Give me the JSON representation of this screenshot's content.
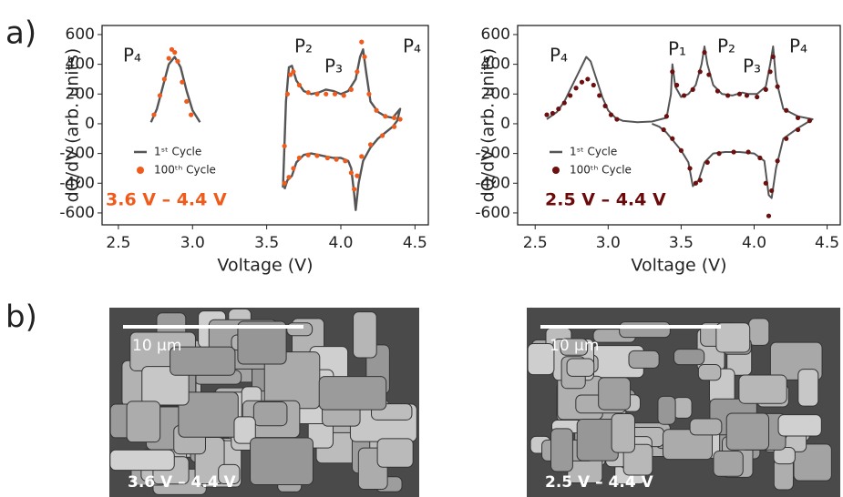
{
  "panel_labels": [
    "a)",
    "b)"
  ],
  "chart_data": [
    {
      "type": "line",
      "xlabel": "Voltage (V)",
      "ylabel": "dQ/dV (arb. units)",
      "xlim": [
        2.39,
        4.59
      ],
      "ylim": [
        -680,
        661
      ],
      "xticks": [
        2.5,
        {
          "value": 3,
          "label": "3.0"
        },
        3.5,
        {
          "value": 4,
          "label": "4.0"
        },
        4.5
      ],
      "yticks": [
        -600,
        -400,
        -200,
        0,
        200,
        400,
        600
      ],
      "annotations": [
        "P₄",
        "P₂",
        "P₃",
        "P₄"
      ],
      "range_label": "3.6 V – 4.4 V",
      "range_color": "#f05a1a",
      "series": [
        {
          "name": "1ˢᵗ Cycle",
          "color": "#555555",
          "style": "line",
          "x": [
            2.72,
            2.76,
            2.8,
            2.84,
            2.88,
            2.92,
            2.96,
            3.0,
            3.05,
            null,
            3.61,
            3.63,
            3.65,
            3.67,
            3.7,
            3.75,
            3.8,
            3.85,
            3.9,
            3.95,
            4.0,
            4.05,
            4.1,
            4.13,
            4.15,
            4.17,
            4.2,
            4.25,
            4.3,
            4.35,
            4.4,
            4.38,
            4.35,
            4.3,
            4.25,
            4.2,
            4.15,
            4.12,
            4.1,
            4.09,
            4.07,
            4.05,
            4.0,
            3.95,
            3.9,
            3.85,
            3.8,
            3.75,
            3.7,
            3.67,
            3.64,
            3.62
          ],
          "values": [
            10,
            100,
            250,
            400,
            450,
            380,
            220,
            90,
            10,
            null,
            -430,
            150,
            380,
            390,
            290,
            220,
            200,
            210,
            230,
            220,
            200,
            220,
            300,
            450,
            500,
            350,
            150,
            80,
            50,
            40,
            100,
            20,
            -20,
            -60,
            -100,
            -160,
            -250,
            -400,
            -580,
            -470,
            -300,
            -250,
            -230,
            -230,
            -220,
            -210,
            -200,
            -210,
            -260,
            -350,
            -380,
            -440
          ]
        },
        {
          "name": "100ᵗʰ Cycle",
          "color": "#f05a1a",
          "style": "scatter",
          "x": [
            2.74,
            2.78,
            2.81,
            2.84,
            2.86,
            2.88,
            2.9,
            2.93,
            2.96,
            2.99,
            3.62,
            3.64,
            3.66,
            3.68,
            3.72,
            3.78,
            3.84,
            3.9,
            3.96,
            4.02,
            4.07,
            4.11,
            4.14,
            4.16,
            4.19,
            4.24,
            4.3,
            4.36,
            4.4,
            4.36,
            4.28,
            4.2,
            4.14,
            4.11,
            4.09,
            4.07,
            4.03,
            3.97,
            3.91,
            3.84,
            3.78,
            3.72,
            3.68,
            3.65,
            3.62
          ],
          "values": [
            60,
            190,
            300,
            440,
            500,
            480,
            420,
            280,
            150,
            60,
            -150,
            200,
            330,
            350,
            260,
            210,
            200,
            200,
            200,
            190,
            230,
            350,
            550,
            450,
            200,
            90,
            50,
            40,
            30,
            -20,
            -80,
            -140,
            -220,
            -350,
            -440,
            -330,
            -250,
            -240,
            -230,
            -215,
            -210,
            -230,
            -300,
            -360,
            -400
          ]
        }
      ]
    },
    {
      "type": "line",
      "xlabel": "Voltage (V)",
      "ylabel": "dQ/dV (arb. units)",
      "xlim": [
        2.38,
        4.59
      ],
      "ylim": [
        -680,
        661
      ],
      "xticks": [
        2.5,
        {
          "value": 3,
          "label": "3.0"
        },
        3.5,
        {
          "value": 4,
          "label": "4.0"
        },
        4.5
      ],
      "yticks": [
        -600,
        -400,
        -200,
        0,
        200,
        400,
        600
      ],
      "annotations": [
        "P₄",
        "P₁",
        "P₂",
        "P₃",
        "P₄"
      ],
      "range_label": "2.5 V – 4.4 V",
      "range_color": "#6b0a0a",
      "series": [
        {
          "name": "1ˢᵗ Cycle",
          "color": "#555555",
          "style": "line",
          "x": [
            2.58,
            2.65,
            2.7,
            2.75,
            2.8,
            2.85,
            2.88,
            2.92,
            2.96,
            3.0,
            3.05,
            3.1,
            3.2,
            3.3,
            3.4,
            3.43,
            3.44,
            3.46,
            3.5,
            3.55,
            3.6,
            3.64,
            3.66,
            3.68,
            3.72,
            3.78,
            3.85,
            3.92,
            3.96,
            4.02,
            4.08,
            4.11,
            4.13,
            4.15,
            4.2,
            4.3,
            4.4,
            4.35,
            4.3,
            4.2,
            4.15,
            4.12,
            4.1,
            4.07,
            4.0,
            3.9,
            3.8,
            3.72,
            3.66,
            3.62,
            3.58,
            3.55,
            3.5,
            3.45,
            3.4,
            3.35,
            3.3
          ],
          "values": [
            30,
            80,
            150,
            250,
            350,
            450,
            420,
            300,
            180,
            90,
            40,
            20,
            10,
            15,
            40,
            200,
            400,
            250,
            180,
            200,
            260,
            400,
            520,
            400,
            260,
            200,
            190,
            210,
            200,
            200,
            250,
            400,
            520,
            300,
            100,
            50,
            30,
            0,
            -30,
            -100,
            -300,
            -500,
            -480,
            -250,
            -200,
            -190,
            -190,
            -200,
            -260,
            -380,
            -420,
            -260,
            -180,
            -120,
            -60,
            -20,
            0
          ]
        },
        {
          "name": "100ᵗʰ Cycle",
          "color": "#6b0f0f",
          "style": "scatter",
          "x": [
            2.58,
            2.62,
            2.66,
            2.7,
            2.74,
            2.78,
            2.82,
            2.86,
            2.9,
            2.94,
            2.98,
            3.02,
            3.06,
            3.4,
            3.44,
            3.47,
            3.52,
            3.58,
            3.63,
            3.66,
            3.69,
            3.75,
            3.82,
            3.9,
            3.95,
            4.02,
            4.08,
            4.11,
            4.13,
            4.16,
            4.22,
            4.3,
            4.38,
            4.3,
            4.22,
            4.16,
            4.12,
            4.1,
            4.08,
            4.04,
            3.96,
            3.86,
            3.76,
            3.68,
            3.63,
            3.6,
            3.56,
            3.5,
            3.44,
            3.38
          ],
          "values": [
            60,
            70,
            100,
            140,
            190,
            240,
            280,
            300,
            260,
            190,
            120,
            60,
            30,
            50,
            350,
            260,
            190,
            230,
            350,
            480,
            330,
            220,
            190,
            200,
            190,
            180,
            230,
            350,
            450,
            250,
            90,
            40,
            20,
            -40,
            -100,
            -250,
            -450,
            -620,
            -400,
            -230,
            -190,
            -190,
            -200,
            -260,
            -380,
            -400,
            -300,
            -180,
            -100,
            -40
          ]
        }
      ]
    }
  ],
  "images": [
    {
      "scale_bar": "10 μm",
      "caption": "3.6 V – 4.4 V"
    },
    {
      "scale_bar": "10 μm",
      "caption": "2.5 V – 4.4 V"
    }
  ]
}
